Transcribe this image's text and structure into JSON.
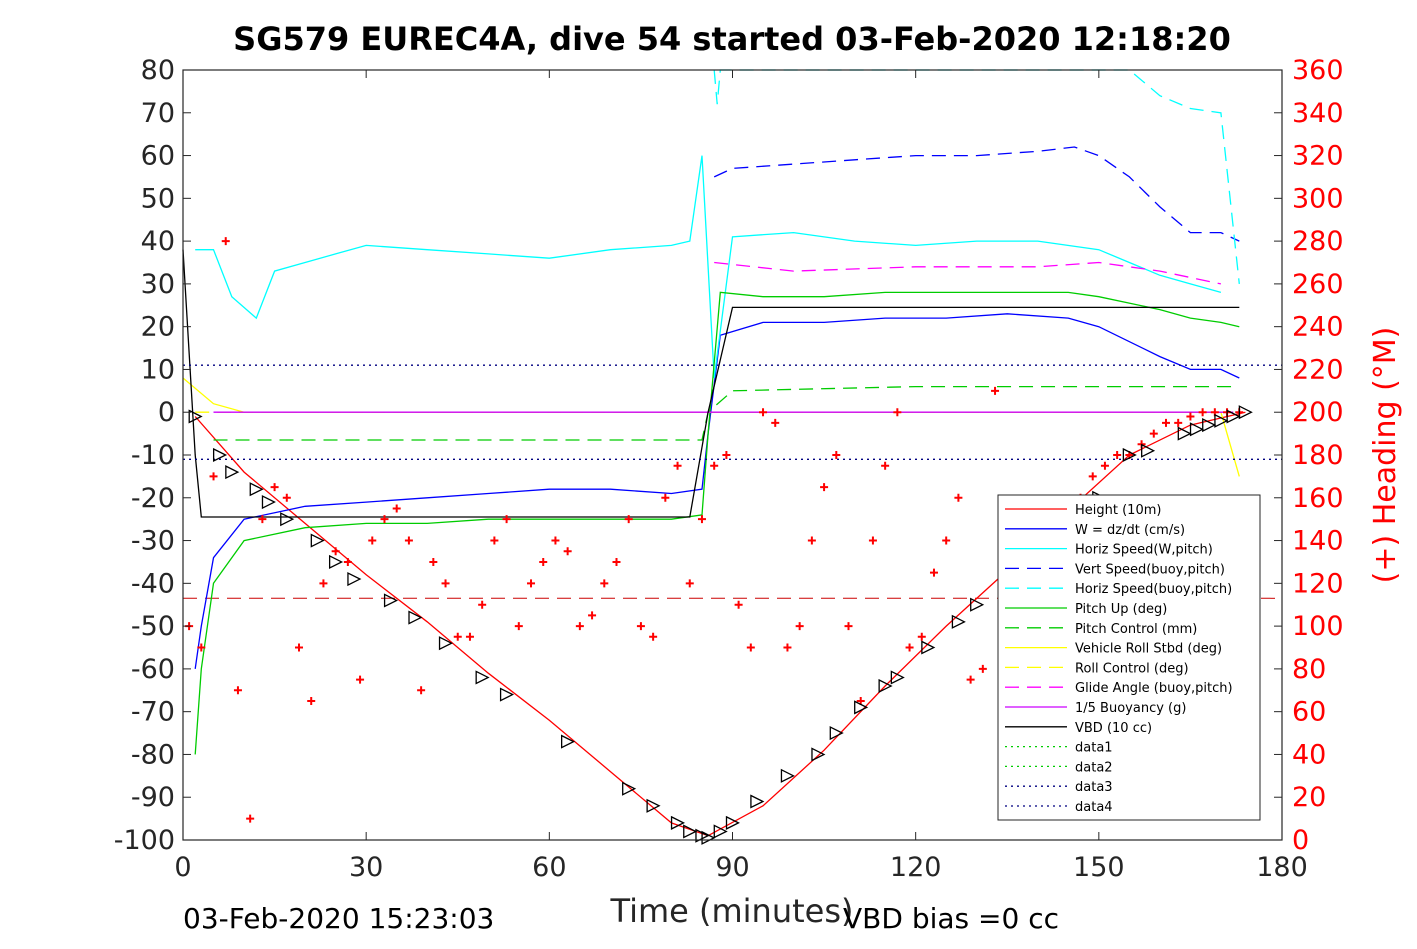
{
  "chart_data": {
    "type": "line",
    "title": "SG579 EUREC4A, dive 54 started 03-Feb-2020 12:18:20",
    "xlabel": "Time (minutes)",
    "ylabel_right": "(+) Heading (°M)",
    "footer_left": "03-Feb-2020 15:23:03",
    "footer_right": "VBD bias =0 cc",
    "xlim": [
      0,
      180
    ],
    "ylim": [
      -100,
      80
    ],
    "ylim_right": [
      0,
      360
    ],
    "xticks": [
      "0",
      "30",
      "60",
      "90",
      "120",
      "150",
      "180"
    ],
    "yticks": [
      "80",
      "70",
      "60",
      "50",
      "40",
      "30",
      "20",
      "10",
      "0",
      "-10",
      "-20",
      "-30",
      "-40",
      "-50",
      "-60",
      "-70",
      "-80",
      "-90",
      "-100"
    ],
    "yticks_right": [
      "360",
      "340",
      "320",
      "300",
      "280",
      "260",
      "240",
      "220",
      "200",
      "180",
      "160",
      "140",
      "120",
      "100",
      "80",
      "60",
      "40",
      "20",
      "0"
    ],
    "grid": false,
    "legend_position": "bottom-right",
    "series": [
      {
        "name": "Height (10m)",
        "color": "#ff0000",
        "style": "solid",
        "x": [
          2,
          10,
          20,
          30,
          40,
          50,
          60,
          70,
          80,
          86,
          95,
          105,
          115,
          125,
          135,
          145,
          155,
          165,
          174
        ],
        "y": [
          -1,
          -14,
          -26,
          -38,
          -49,
          -61,
          -72,
          -84,
          -96,
          -99,
          -92,
          -79,
          -64,
          -50,
          -37,
          -23,
          -10,
          -3,
          0
        ]
      },
      {
        "name": "W = dz/dt (cm/s)",
        "color": "#0000ff",
        "style": "solid",
        "x": [
          2,
          3,
          5,
          10,
          20,
          30,
          40,
          50,
          60,
          70,
          80,
          85,
          86,
          88,
          95,
          105,
          115,
          125,
          135,
          145,
          150,
          160,
          165,
          170,
          173
        ],
        "y": [
          -60,
          -50,
          -34,
          -25,
          -22,
          -21,
          -20,
          -19,
          -18,
          -18,
          -19,
          -18,
          -5,
          18,
          21,
          21,
          22,
          22,
          23,
          22,
          20,
          13,
          10,
          10,
          8
        ]
      },
      {
        "name": "Horiz Speed(W,pitch)",
        "color": "#00ffff",
        "style": "solid",
        "x": [
          2,
          5,
          8,
          12,
          15,
          20,
          25,
          30,
          40,
          50,
          60,
          70,
          80,
          83,
          85,
          87,
          90,
          100,
          110,
          120,
          130,
          140,
          150,
          160,
          165,
          170
        ],
        "y": [
          38,
          38,
          27,
          22,
          33,
          35,
          37,
          39,
          38,
          37,
          36,
          38,
          39,
          40,
          60,
          8,
          41,
          42,
          40,
          39,
          40,
          40,
          38,
          32,
          30,
          28
        ]
      },
      {
        "name": "Vert Speed(buoy,pitch)",
        "color": "#0000ff",
        "style": "dashed",
        "x": [
          87,
          90,
          100,
          110,
          120,
          130,
          140,
          146,
          150,
          155,
          160,
          165,
          170,
          173
        ],
        "y": [
          55,
          57,
          58,
          59,
          60,
          60,
          61,
          62,
          60,
          55,
          48,
          42,
          42,
          40
        ]
      },
      {
        "name": "Horiz Speed(buoy,pitch)",
        "color": "#00ffff",
        "style": "dashed",
        "x": [
          87,
          87.5,
          88,
          155,
          160,
          165,
          170,
          173
        ],
        "y": [
          80,
          72,
          80,
          80,
          74,
          71,
          70,
          30
        ]
      },
      {
        "name": "Pitch Up (deg)",
        "color": "#00cc00",
        "style": "solid",
        "x": [
          2,
          3,
          5,
          10,
          20,
          30,
          40,
          50,
          60,
          70,
          80,
          85,
          86,
          88,
          95,
          105,
          115,
          125,
          135,
          145,
          150,
          160,
          165,
          170,
          173
        ],
        "y": [
          -80,
          -60,
          -40,
          -30,
          -27,
          -26,
          -26,
          -25,
          -25,
          -25,
          -25,
          -24,
          -5,
          28,
          27,
          27,
          28,
          28,
          28,
          28,
          27,
          24,
          22,
          21,
          20
        ]
      },
      {
        "name": "Pitch Control (mm)",
        "color": "#00cc00",
        "style": "dashed",
        "x": [
          5,
          85,
          86,
          90,
          120,
          150,
          172
        ],
        "y": [
          -6.5,
          -6.5,
          0,
          5,
          6,
          6,
          6
        ]
      },
      {
        "name": "Vehicle Roll Stbd (deg)",
        "color": "#ffff00",
        "style": "solid",
        "x": [
          0,
          5,
          10,
          20,
          30,
          40,
          50,
          60,
          70,
          80,
          86,
          90,
          100,
          110,
          120,
          130,
          140,
          150,
          160,
          170,
          173
        ],
        "y": [
          8,
          2,
          0,
          0,
          0,
          0,
          0,
          0,
          0,
          0,
          0,
          0,
          0,
          0,
          0,
          0,
          0,
          0,
          0,
          0,
          -15
        ]
      },
      {
        "name": "Roll Control (deg)",
        "color": "#ffff00",
        "style": "dashed",
        "x": [
          2,
          172
        ],
        "y": [
          0,
          0
        ]
      },
      {
        "name": "Glide Angle (buoy,pitch)",
        "color": "#ff00ff",
        "style": "dashed",
        "x": [
          87,
          100,
          120,
          140,
          150,
          160,
          170
        ],
        "y": [
          35,
          33,
          34,
          34,
          35,
          33,
          30
        ]
      },
      {
        "name": "1/5 Buoyancy (g)",
        "color": "#cc00ff",
        "style": "solid",
        "x": [
          5,
          85,
          86,
          172
        ],
        "y": [
          0,
          0,
          0,
          0
        ]
      },
      {
        "name": "VBD (10 cc)",
        "color": "#000000",
        "style": "solid",
        "x": [
          0,
          2,
          3,
          83,
          86,
          90,
          173
        ],
        "y": [
          38,
          -10,
          -24.5,
          -24.5,
          0,
          24.5,
          24.5
        ]
      },
      {
        "name": "data1",
        "color": "#00cc00",
        "style": "dotted",
        "x": [],
        "y": []
      },
      {
        "name": "data2",
        "color": "#00cc00",
        "style": "dotted",
        "x": [],
        "y": []
      },
      {
        "name": "data3",
        "color": "#000080",
        "style": "dotted",
        "x": [
          0,
          180
        ],
        "y": [
          11,
          11
        ]
      },
      {
        "name": "data4",
        "color": "#000080",
        "style": "dotted",
        "x": [
          0,
          180
        ],
        "y": [
          -11,
          -11
        ]
      }
    ],
    "reference_lines": [
      {
        "color": "#cc0000",
        "style": "dashed",
        "y": -43.5
      }
    ],
    "heading_series": {
      "color": "#ff0000",
      "marker": "+",
      "axis": "right",
      "x": [
        1,
        3,
        5,
        7,
        9,
        11,
        13,
        15,
        17,
        19,
        21,
        23,
        25,
        27,
        29,
        31,
        33,
        35,
        37,
        39,
        41,
        43,
        45,
        47,
        49,
        51,
        53,
        55,
        57,
        59,
        61,
        63,
        65,
        67,
        69,
        71,
        73,
        75,
        77,
        79,
        81,
        83,
        85,
        87,
        89,
        91,
        93,
        95,
        97,
        99,
        101,
        103,
        105,
        107,
        109,
        111,
        113,
        115,
        117,
        119,
        121,
        123,
        125,
        127,
        129,
        131,
        133,
        135,
        137,
        139,
        141,
        143,
        145,
        147,
        149,
        151,
        153,
        155,
        157,
        159,
        161,
        163,
        165,
        167,
        169,
        171,
        173
      ],
      "y": [
        100,
        90,
        170,
        280,
        70,
        10,
        150,
        165,
        160,
        90,
        65,
        120,
        135,
        130,
        75,
        140,
        150,
        155,
        140,
        70,
        130,
        120,
        95,
        95,
        110,
        140,
        150,
        100,
        120,
        130,
        140,
        135,
        100,
        105,
        120,
        130,
        150,
        100,
        95,
        160,
        175,
        120,
        150,
        175,
        180,
        110,
        90,
        200,
        195,
        90,
        100,
        140,
        165,
        180,
        100,
        65,
        140,
        175,
        200,
        90,
        95,
        125,
        140,
        160,
        75,
        80,
        210,
        95,
        115,
        120,
        130,
        135,
        150,
        160,
        170,
        175,
        180,
        180,
        185,
        190,
        195,
        195,
        198,
        200,
        200,
        200,
        200
      ]
    },
    "depth_markers": {
      "color": "#000000",
      "marker": "triangle",
      "x": [
        2,
        6,
        8,
        12,
        14,
        17,
        22,
        25,
        28,
        34,
        38,
        43,
        49,
        53,
        63,
        73,
        77,
        81,
        83,
        85,
        86,
        88,
        90,
        94,
        99,
        104,
        107,
        111,
        115,
        117,
        122,
        127,
        130,
        135,
        141,
        145,
        150,
        155,
        158,
        164,
        166,
        168,
        170,
        172,
        174
      ],
      "y": [
        -1,
        -10,
        -14,
        -18,
        -21,
        -25,
        -30,
        -35,
        -39,
        -44,
        -48,
        -54,
        -62,
        -66,
        -77,
        -88,
        -92,
        -96,
        -98,
        -99,
        -99.5,
        -98,
        -96,
        -91,
        -85,
        -80,
        -75,
        -69,
        -64,
        -62,
        -55,
        -49,
        -45,
        -38,
        -30,
        -25,
        -20,
        -10,
        -9,
        -5,
        -4,
        -3,
        -2,
        -1,
        0
      ]
    }
  }
}
